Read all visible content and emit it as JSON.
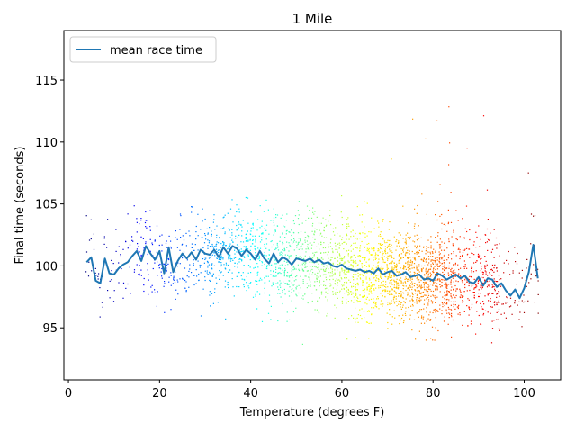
{
  "chart_data": {
    "type": "scatter",
    "title": "1 Mile",
    "xlabel": "Temperature (degrees F)",
    "ylabel": "Final time (seconds)",
    "xlim": [
      -1,
      108
    ],
    "ylim": [
      90.8,
      119
    ],
    "xticks": [
      0,
      20,
      40,
      60,
      80,
      100
    ],
    "yticks": [
      95,
      100,
      105,
      110,
      115
    ],
    "grid": false,
    "legend_position": "top-left",
    "colormap": "jet",
    "series": [
      {
        "name": "mean race time",
        "type": "line",
        "color": "#1f77b4",
        "x": [
          4,
          5,
          6,
          7,
          8,
          9,
          10,
          11,
          12,
          13,
          14,
          15,
          16,
          17,
          18,
          19,
          20,
          21,
          22,
          23,
          24,
          25,
          26,
          27,
          28,
          29,
          30,
          31,
          32,
          33,
          34,
          35,
          36,
          37,
          38,
          39,
          40,
          41,
          42,
          43,
          44,
          45,
          46,
          47,
          48,
          49,
          50,
          51,
          52,
          53,
          54,
          55,
          56,
          57,
          58,
          59,
          60,
          61,
          62,
          63,
          64,
          65,
          66,
          67,
          68,
          69,
          70,
          71,
          72,
          73,
          74,
          75,
          76,
          77,
          78,
          79,
          80,
          81,
          82,
          83,
          84,
          85,
          86,
          87,
          88,
          89,
          90,
          91,
          92,
          93,
          94,
          95,
          96,
          97,
          98,
          99,
          100,
          101,
          102,
          103
        ],
        "y": [
          100.3,
          100.7,
          98.8,
          98.6,
          100.6,
          99.4,
          99.3,
          99.8,
          100.1,
          100.3,
          100.8,
          101.2,
          100.4,
          101.6,
          101.0,
          100.5,
          101.2,
          99.4,
          101.5,
          99.5,
          100.4,
          101.0,
          100.6,
          101.1,
          100.5,
          101.3,
          101.0,
          100.9,
          101.3,
          100.7,
          101.5,
          101.0,
          101.6,
          101.4,
          100.8,
          101.3,
          101.0,
          100.5,
          101.2,
          100.6,
          100.2,
          101.0,
          100.3,
          100.7,
          100.5,
          100.1,
          100.6,
          100.5,
          100.4,
          100.6,
          100.3,
          100.5,
          100.2,
          100.3,
          100.0,
          99.9,
          100.1,
          99.8,
          99.7,
          99.6,
          99.7,
          99.5,
          99.6,
          99.4,
          99.8,
          99.3,
          99.5,
          99.6,
          99.2,
          99.3,
          99.5,
          99.1,
          99.2,
          99.3,
          98.9,
          99.0,
          98.8,
          99.4,
          99.2,
          98.9,
          99.1,
          99.3,
          99.0,
          99.2,
          98.7,
          98.6,
          99.1,
          98.4,
          99.0,
          98.9,
          98.3,
          98.6,
          98.0,
          97.6,
          98.1,
          97.4,
          98.2,
          99.5,
          101.7,
          99.0
        ]
      }
    ],
    "scatter_summary": {
      "description_units": "seconds vs degrees F",
      "x_range": [
        4,
        103
      ],
      "y_range": [
        92,
        118
      ]
    }
  }
}
